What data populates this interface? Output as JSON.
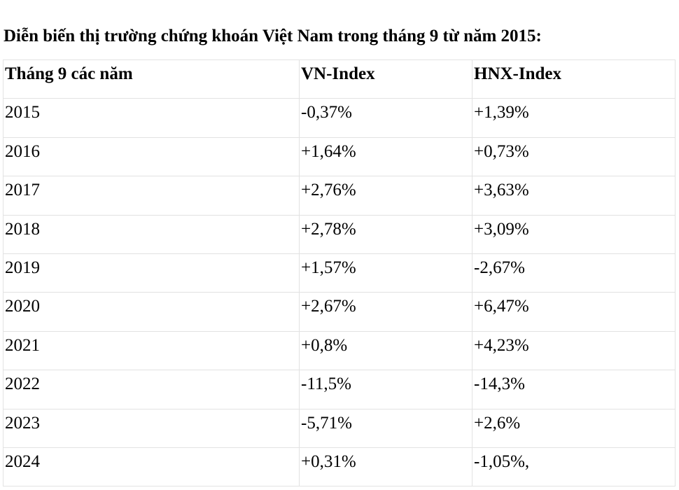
{
  "header": {
    "title": "Diễn biến thị trường chứng khoán Việt Nam trong tháng 9 từ năm 2015:"
  },
  "table": {
    "columns": [
      "Tháng 9 các năm",
      "VN-Index",
      "HNX-Index"
    ],
    "rows": [
      [
        "2015",
        "-0,37%",
        "+1,39%"
      ],
      [
        "2016",
        "+1,64%",
        "+0,73%"
      ],
      [
        "2017",
        "+2,76%",
        "+3,63%"
      ],
      [
        "2018",
        "+2,78%",
        "+3,09%"
      ],
      [
        "2019",
        "+1,57%",
        "-2,67%"
      ],
      [
        "2020",
        "+2,67%",
        "+6,47%"
      ],
      [
        "2021",
        "+0,8%",
        "+4,23%"
      ],
      [
        "2022",
        "-11,5%",
        "-14,3%"
      ],
      [
        "2023",
        "-5,71%",
        "+2,6%"
      ],
      [
        "2024",
        "+0,31%",
        "-1,05%,"
      ]
    ]
  }
}
